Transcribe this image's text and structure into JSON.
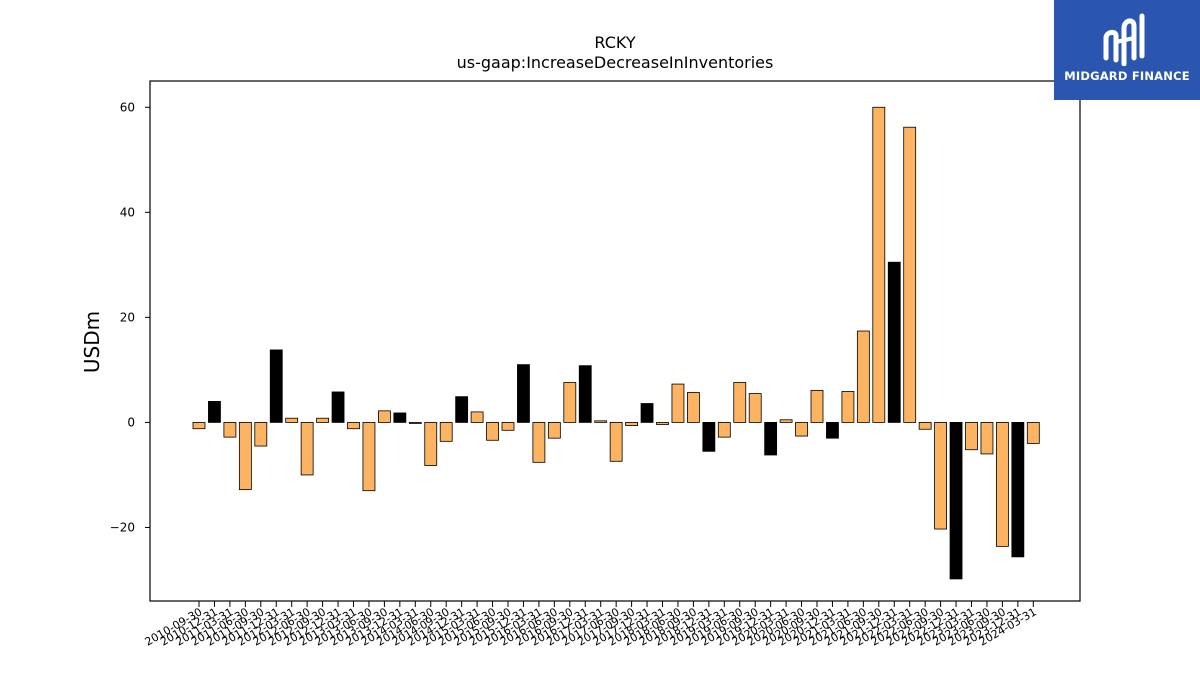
{
  "chart_data": {
    "type": "bar",
    "title": "RCKY",
    "subtitle": "us-gaap:IncreaseDecreaseInInventories",
    "ylabel": "USDm",
    "xlabel": "",
    "ylim": [
      -34,
      65
    ],
    "yticks": [
      -20,
      0,
      20,
      40,
      60
    ],
    "ytick_labels": [
      "−20",
      "0",
      "20",
      "40",
      "60"
    ],
    "colors": {
      "quarterly": "#fdb462",
      "annual": "#000000",
      "edge": "#000000"
    },
    "categories": [
      "2010-09-30",
      "2010-12-31",
      "2011-03-31",
      "2011-06-30",
      "2011-09-30",
      "2011-12-31",
      "2012-03-31",
      "2012-06-30",
      "2012-09-30",
      "2012-12-31",
      "2013-03-31",
      "2013-06-30",
      "2013-09-30",
      "2013-12-31",
      "2014-03-31",
      "2014-06-30",
      "2014-09-30",
      "2014-12-31",
      "2015-03-31",
      "2015-06-30",
      "2015-09-30",
      "2015-12-31",
      "2016-03-31",
      "2016-06-30",
      "2016-09-30",
      "2016-12-31",
      "2017-03-31",
      "2017-06-30",
      "2017-09-30",
      "2017-12-31",
      "2018-03-31",
      "2018-06-30",
      "2018-09-30",
      "2018-12-31",
      "2019-03-31",
      "2019-06-30",
      "2019-09-30",
      "2019-12-31",
      "2020-03-31",
      "2020-06-30",
      "2020-09-30",
      "2020-12-31",
      "2021-03-31",
      "2021-06-30",
      "2021-09-30",
      "2021-12-31",
      "2022-03-31",
      "2022-06-30",
      "2022-09-30",
      "2022-12-31",
      "2023-03-31",
      "2023-06-30",
      "2023-09-30",
      "2023-12-31",
      "2024-03-31"
    ],
    "values": [
      -1.2,
      4.0,
      -2.8,
      -12.8,
      -4.5,
      13.8,
      0.8,
      -10.0,
      0.8,
      5.8,
      -1.2,
      -13.0,
      2.2,
      1.8,
      -0.2,
      -8.2,
      -3.6,
      4.9,
      2.0,
      -3.4,
      -1.5,
      11.0,
      -7.6,
      -3.0,
      7.6,
      10.8,
      0.3,
      -7.4,
      -0.6,
      3.6,
      -0.4,
      7.3,
      5.7,
      -5.5,
      -2.8,
      7.6,
      5.5,
      -6.2,
      0.5,
      -2.6,
      6.1,
      -3.0,
      5.9,
      17.4,
      60.0,
      30.5,
      56.2,
      -1.3,
      -20.3,
      -29.8,
      -5.2,
      -6.0,
      -23.6,
      -25.6,
      -4.0
    ],
    "annual": [
      false,
      true,
      false,
      false,
      false,
      true,
      false,
      false,
      false,
      true,
      false,
      false,
      false,
      true,
      false,
      false,
      false,
      true,
      false,
      false,
      false,
      true,
      false,
      false,
      false,
      true,
      false,
      false,
      false,
      true,
      false,
      false,
      false,
      true,
      false,
      false,
      false,
      true,
      false,
      false,
      false,
      true,
      false,
      false,
      false,
      true,
      false,
      false,
      false,
      true,
      false,
      false,
      false,
      true,
      false
    ]
  },
  "logo": {
    "text": "MIDGARD FINANCE",
    "icon": "midgard-logo-icon"
  }
}
